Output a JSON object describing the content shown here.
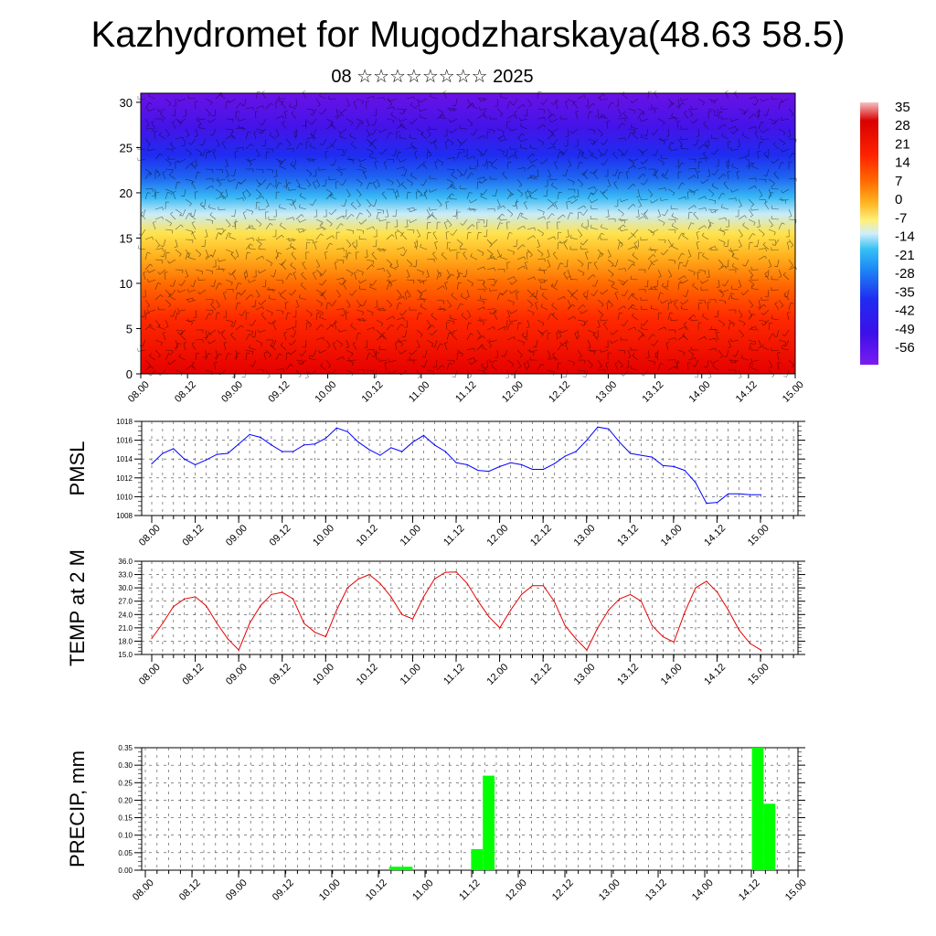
{
  "header": {
    "title": "Kazhydromet for Mugodzharskaya(48.63 58.5)",
    "subtitle": "08 ☆☆☆☆☆☆☆☆ 2025"
  },
  "chart_data": [
    {
      "type": "heatmap",
      "description_of_axes": "time vs height level",
      "x_ticks": [
        "08.00",
        "08.12",
        "09.00",
        "09.12",
        "10.00",
        "10.12",
        "11.00",
        "11.12",
        "12.00",
        "12.12",
        "13.00",
        "13.12",
        "14.00",
        "14.12",
        "15.00"
      ],
      "y_ticks": [
        0,
        5,
        10,
        15,
        20,
        25,
        30
      ],
      "ylim": [
        0,
        31
      ],
      "colorbar": {
        "labels": [
          "35",
          "28",
          "21",
          "14",
          "7",
          "0",
          "-7",
          "-14",
          "-21",
          "-28",
          "-35",
          "-42",
          "-49",
          "-56"
        ],
        "range": [
          -60,
          38
        ]
      },
      "colors": {
        "warm": "#ff1a00",
        "mid": "#ffe34d",
        "cool": "#1eb4ff",
        "cold": "#6a12e6"
      },
      "overlay": "wind barbs"
    },
    {
      "type": "line",
      "ylabel": "PMSL",
      "ylim": [
        1008,
        1018
      ],
      "y_ticks": [
        "1008",
        "1010",
        "1012",
        "1014",
        "1016",
        "1018"
      ],
      "x_ticks": [
        "08.00",
        "08.12",
        "09.00",
        "09.12",
        "10.00",
        "10.12",
        "11.00",
        "11.12",
        "12.00",
        "12.12",
        "13.00",
        "13.12",
        "14.00",
        "14.12",
        "15.00"
      ],
      "series": [
        {
          "color": "#0000ff",
          "values": [
            1013.5,
            1014.6,
            1015.1,
            1014.0,
            1013.4,
            1013.9,
            1014.5,
            1014.6,
            1015.6,
            1016.6,
            1016.3,
            1015.5,
            1014.8,
            1014.8,
            1015.5,
            1015.6,
            1016.2,
            1017.3,
            1016.9,
            1015.8,
            1015.0,
            1014.4,
            1015.2,
            1014.8,
            1015.8,
            1016.5,
            1015.5,
            1014.8,
            1013.6,
            1013.4,
            1012.8,
            1012.7,
            1013.2,
            1013.6,
            1013.4,
            1012.9,
            1012.9,
            1013.5,
            1014.3,
            1014.8,
            1016.0,
            1017.4,
            1017.2,
            1015.8,
            1014.6,
            1014.4,
            1014.2,
            1013.3,
            1013.2,
            1012.8,
            1011.5,
            1009.3,
            1009.4,
            1010.3,
            1010.3,
            1010.2,
            1010.2
          ]
        }
      ]
    },
    {
      "type": "line",
      "ylabel": "TEMP at 2 M",
      "ylim": [
        15,
        36
      ],
      "y_ticks": [
        "15.0",
        "18.0",
        "21.0",
        "24.0",
        "27.0",
        "30.0",
        "33.0",
        "36.0"
      ],
      "x_ticks": [
        "08.00",
        "08.12",
        "09.00",
        "09.12",
        "10.00",
        "10.12",
        "11.00",
        "11.12",
        "12.00",
        "12.12",
        "13.00",
        "13.12",
        "14.00",
        "14.12",
        "15.00"
      ],
      "series": [
        {
          "color": "#e60000",
          "values": [
            18.6,
            22.0,
            25.8,
            27.5,
            28.0,
            26.0,
            22.0,
            18.5,
            16.0,
            22.0,
            26.0,
            28.5,
            29.0,
            27.5,
            22.0,
            20.0,
            19.0,
            25.0,
            30.0,
            32.0,
            33.0,
            31.0,
            28.0,
            24.0,
            23.0,
            28.0,
            32.0,
            33.5,
            33.6,
            31.0,
            27.0,
            23.5,
            21.0,
            25.0,
            28.5,
            30.5,
            30.5,
            27.0,
            21.5,
            18.5,
            16.0,
            21.0,
            25.0,
            27.5,
            28.5,
            27.0,
            21.5,
            19.0,
            17.8,
            24.5,
            30.0,
            31.5,
            29.0,
            25.0,
            20.5,
            17.5,
            16.0
          ]
        }
      ]
    },
    {
      "type": "bar",
      "ylabel": "PRECIP, mm",
      "ylim": [
        0,
        0.35
      ],
      "y_ticks": [
        "0.00",
        "0.05",
        "0.10",
        "0.15",
        "0.20",
        "0.25",
        "0.30",
        "0.35"
      ],
      "x_ticks": [
        "08.00",
        "08.12",
        "09.00",
        "09.12",
        "10.00",
        "10.12",
        "11.00",
        "11.12",
        "12.00",
        "12.12",
        "13.00",
        "13.12",
        "14.00",
        "14.12",
        "15.00"
      ],
      "bar_color": "#00ff00",
      "bars": [
        {
          "index": 21,
          "value": 0.01
        },
        {
          "index": 22,
          "value": 0.01
        },
        {
          "index": 28,
          "value": 0.06
        },
        {
          "index": 29,
          "value": 0.27
        },
        {
          "index": 52,
          "value": 0.35
        },
        {
          "index": 53,
          "value": 0.19
        }
      ]
    }
  ]
}
